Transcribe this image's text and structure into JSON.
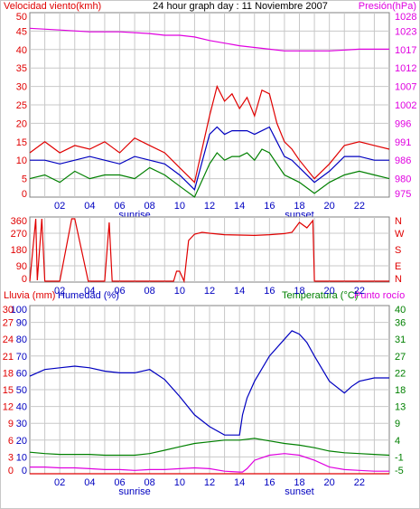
{
  "title": "24 hour graph day : 11 Noviembre 2007",
  "colors": {
    "background": "#ffffff",
    "plot_background": "#ffffff",
    "grid": "#c8c8c8",
    "wind": "#e00000",
    "wind_avg": "#0000c0",
    "wind_alt": "#008000",
    "pressure": "#e000e0",
    "direction": "#e00000",
    "humidity": "#0000c0",
    "temperature": "#008000",
    "dewpoint": "#e000e0",
    "rain": "#e00000",
    "axis_left": "#e00000",
    "axis_right": "#008000"
  },
  "panel1": {
    "label_left": "Velocidad viento(kmh)",
    "label_right": "Presión(hPa)"
  },
  "panel2": {},
  "panel3": {
    "label_rain": "Lluvia (mm)",
    "label_humidity": "Humedad (%)",
    "label_temperature": "Temperatura (°C)",
    "label_dewpoint": "Punto rocío"
  },
  "markers": {
    "sunrise": "sunrise",
    "sunset": "sunset"
  },
  "chart_data": [
    {
      "type": "line",
      "title": "24 hour graph day : 11 Noviembre 2007",
      "ylabel": "Velocidad viento(kmh)",
      "ylabel_right": "Presión(hPa)",
      "ylim": [
        0,
        50
      ],
      "ylim_right": [
        975,
        1028
      ],
      "x_ticks": [
        "02",
        "04",
        "06",
        "08",
        "10",
        "12",
        "14",
        "16",
        "18",
        "20",
        "22"
      ],
      "y_ticks": [
        "0",
        "5",
        "10",
        "15",
        "20",
        "25",
        "30",
        "35",
        "40",
        "45",
        "50"
      ],
      "y_ticks_right": [
        "975",
        "980",
        "986",
        "991",
        "996",
        "1002",
        "1007",
        "1012",
        "1017",
        "1023",
        "1028"
      ],
      "series": [
        {
          "color": "#e00000",
          "x": [
            0,
            1,
            2,
            3,
            4,
            5,
            6,
            7,
            8,
            9,
            10,
            11,
            12,
            12.5,
            13,
            13.5,
            14,
            14.5,
            15,
            15.5,
            16,
            16.5,
            17,
            17.5,
            18,
            19,
            20,
            21,
            22,
            23,
            24
          ],
          "values": [
            12,
            15,
            12,
            14,
            13,
            15,
            12,
            16,
            14,
            12,
            8,
            4,
            22,
            30,
            26,
            28,
            24,
            27,
            22,
            29,
            28,
            20,
            15,
            13,
            10,
            5,
            9,
            14,
            15,
            14,
            13
          ]
        },
        {
          "color": "#0000c0",
          "x": [
            0,
            1,
            2,
            3,
            4,
            5,
            6,
            7,
            8,
            9,
            10,
            11,
            12,
            12.5,
            13,
            13.5,
            14,
            14.5,
            15,
            15.5,
            16,
            16.5,
            17,
            17.5,
            18,
            19,
            20,
            21,
            22,
            23,
            24
          ],
          "values": [
            10,
            10,
            9,
            10,
            11,
            10,
            9,
            11,
            10,
            9,
            6,
            2,
            17,
            19,
            17,
            18,
            18,
            18,
            17,
            18,
            19,
            15,
            11,
            10,
            8,
            4,
            7,
            11,
            11,
            10,
            10
          ]
        },
        {
          "color": "#008000",
          "x": [
            0,
            1,
            2,
            3,
            4,
            5,
            6,
            7,
            8,
            9,
            10,
            11,
            12,
            12.5,
            13,
            13.5,
            14,
            14.5,
            15,
            15.5,
            16,
            16.5,
            17,
            17.5,
            18,
            19,
            20,
            21,
            22,
            23,
            24
          ],
          "values": [
            5,
            6,
            4,
            7,
            5,
            6,
            6,
            5,
            8,
            6,
            3,
            0,
            9,
            12,
            10,
            11,
            11,
            12,
            10,
            13,
            12,
            9,
            6,
            5,
            4,
            1,
            4,
            6,
            7,
            6,
            5
          ]
        },
        {
          "color": "#e000e0",
          "axis": "right",
          "x": [
            0,
            2,
            4,
            6,
            8,
            9,
            10,
            11,
            12,
            14,
            16,
            17,
            18,
            20,
            22,
            24
          ],
          "values": [
            1023.5,
            1023,
            1022.5,
            1022.5,
            1022,
            1021.5,
            1021.5,
            1021,
            1020,
            1018.5,
            1017.5,
            1017,
            1017,
            1017,
            1017.5,
            1017.5
          ]
        }
      ]
    },
    {
      "type": "line",
      "ylim": [
        0,
        360
      ],
      "x_ticks": [
        "02",
        "04",
        "06",
        "08",
        "10",
        "12",
        "14",
        "16",
        "18",
        "20",
        "22"
      ],
      "y_ticks": [
        "0",
        "90",
        "180",
        "270",
        "360"
      ],
      "y_ticks_right": [
        "N",
        "E",
        "S",
        "W",
        "N"
      ],
      "series": [
        {
          "color": "#e00000",
          "x": [
            0,
            0.4,
            0.5,
            0.8,
            1,
            2,
            2.8,
            3,
            3.9,
            4,
            5,
            5.3,
            5.5,
            6,
            6.2,
            7,
            8,
            9.6,
            9.8,
            10,
            10.3,
            10.6,
            11,
            11.5,
            12,
            13,
            14,
            15,
            16,
            17,
            17.5,
            18,
            18.5,
            18.9,
            19,
            20,
            21,
            22,
            23,
            24
          ],
          "values": [
            5,
            350,
            10,
            350,
            5,
            5,
            350,
            350,
            5,
            5,
            5,
            330,
            5,
            5,
            5,
            5,
            5,
            5,
            60,
            60,
            5,
            230,
            265,
            275,
            270,
            262,
            260,
            258,
            262,
            268,
            275,
            330,
            300,
            340,
            5,
            5,
            5,
            5,
            5,
            5
          ]
        }
      ]
    },
    {
      "type": "line",
      "ylabel": "Lluvia (mm)",
      "ylabel_secondary": "Humedad (%)",
      "ylabel_right": "Temperatura (°C)",
      "ylabel_right_secondary": "Punto rocío",
      "ylim": [
        0,
        100
      ],
      "ylim_rain": [
        0,
        30
      ],
      "ylim_right": [
        -5,
        40
      ],
      "x_ticks": [
        "02",
        "04",
        "06",
        "08",
        "10",
        "12",
        "14",
        "16",
        "18",
        "20",
        "22"
      ],
      "y_ticks": [
        "0",
        "10",
        "20",
        "30",
        "40",
        "50",
        "60",
        "70",
        "80",
        "90",
        "100"
      ],
      "y_ticks_rain": [
        "0",
        "3",
        "6",
        "9",
        "12",
        "15",
        "18",
        "21",
        "24",
        "27",
        "30"
      ],
      "y_ticks_right": [
        "-5",
        "-1",
        "4",
        "9",
        "13",
        "18",
        "22",
        "27",
        "31",
        "36",
        "40"
      ],
      "series": [
        {
          "color": "#0000c0",
          "x": [
            0,
            1,
            2,
            3,
            4,
            5,
            6,
            7,
            8,
            9,
            10,
            11,
            12,
            13,
            14,
            14.2,
            14.5,
            15,
            16,
            17,
            17.5,
            18,
            18.5,
            19,
            20,
            21,
            21.5,
            22,
            23,
            24
          ],
          "values": [
            58,
            62,
            63,
            64,
            63,
            61,
            60,
            60,
            62,
            56,
            46,
            35,
            28,
            23,
            23,
            35,
            45,
            55,
            70,
            80,
            85,
            83,
            78,
            70,
            55,
            48,
            52,
            55,
            57,
            57
          ]
        },
        {
          "color": "#008000",
          "x": [
            0,
            1,
            2,
            3,
            4,
            5,
            6,
            7,
            8,
            9,
            10,
            11,
            12,
            13,
            14,
            15,
            16,
            17,
            18,
            19,
            20,
            21,
            22,
            23,
            24
          ],
          "values": [
            12.8,
            12,
            11.5,
            11.5,
            11.5,
            11,
            11,
            11,
            12,
            14,
            16,
            18,
            19,
            20,
            20,
            21,
            19.5,
            18,
            17,
            15.5,
            13.5,
            12.5,
            12,
            11.5,
            11
          ]
        },
        {
          "color": "#e000e0",
          "x": [
            0,
            1,
            2,
            3,
            4,
            5,
            6,
            7,
            8,
            9,
            10,
            11,
            12,
            13,
            14,
            14.2,
            14.5,
            15,
            16,
            17,
            18,
            19,
            20,
            21,
            22,
            23,
            24
          ],
          "values": [
            4,
            4,
            3.5,
            3.5,
            3,
            2.5,
            2.5,
            2,
            2.5,
            2.5,
            3,
            3.5,
            3,
            1.5,
            1,
            1,
            3,
            8,
            11,
            12,
            11,
            8,
            4,
            2.5,
            2,
            1.5,
            1.5
          ]
        },
        {
          "color": "#e00000",
          "axis": "rain",
          "x": [
            0,
            24
          ],
          "values": [
            0,
            0
          ]
        }
      ]
    }
  ]
}
